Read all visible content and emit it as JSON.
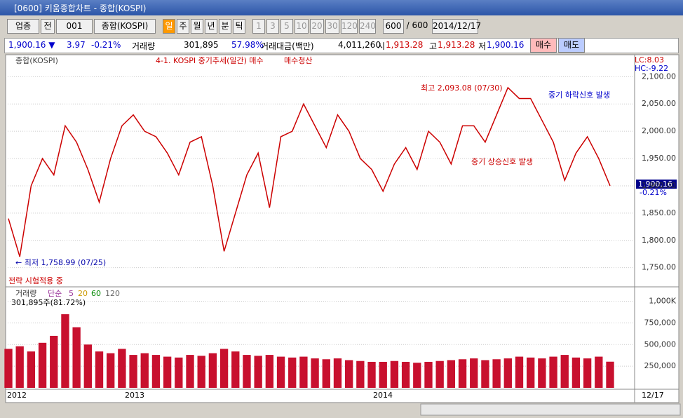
{
  "window": {
    "title": "[0600] 키움종합차트 - 종합(KOSPI)"
  },
  "toolbar": {
    "items": [
      "업종",
      "전",
      "001",
      "종합(KOSPI)",
      "일",
      "주",
      "월",
      "년",
      "분",
      "틱",
      "1",
      "3",
      "5",
      "10",
      "20",
      "30",
      "120",
      "240",
      "600",
      "/ 600",
      "2014/12/17"
    ]
  },
  "info": {
    "price": "1,900.16 ▼",
    "change": "3.97",
    "rate": "-0.21%",
    "volume_label": "거래량",
    "volume": "301,895",
    "volume_rate": "57.98%",
    "amount_label": "거래대금(백만)",
    "amount": "4,011,260",
    "open_label": "시",
    "open": "1,913.28",
    "high_label": "고",
    "high": "1,913.28",
    "low_label": "저",
    "low": "1,900.16",
    "buy": "매수",
    "sell": "매도"
  },
  "legend": {
    "symbol": "종합(KOSPI)",
    "strategy": "4-1. KOSPI 중기추세(일간) 매수",
    "strategy_exit": "매수청산",
    "lc": "LC:8.03",
    "hc": "HC:-9.22"
  },
  "annotations": {
    "high": "최고 2,093.08 (07/30)",
    "down_signal": "중기 하락신호 발생",
    "up_signal": "중기 상승신호 발생",
    "low": "← 최저 1,758.99 (07/25)",
    "testing": "전략 시험적용 중",
    "last": "1,900.16",
    "last_rate": "-0.21%"
  },
  "volume_legend": {
    "name": "거래량",
    "ma": "단순",
    "p5": "5",
    "p20": "20",
    "p60": "60",
    "p120": "120",
    "current": "301,895주(81.72%)"
  },
  "x_labels": [
    "2012",
    "2013",
    "2014",
    "12/17"
  ],
  "chart_data": [
    {
      "type": "line",
      "color": "#cc0000",
      "values": [
        1840,
        1770,
        1900,
        1950,
        1920,
        2010,
        1980,
        1930,
        1870,
        1950,
        2010,
        2030,
        2000,
        1990,
        1960,
        1920,
        1980,
        1990,
        1900,
        1780,
        1850,
        1920,
        1960,
        1860,
        1990,
        2000,
        2050,
        2010,
        1970,
        2030,
        2000,
        1950,
        1930,
        1890,
        1940,
        1970,
        1930,
        2000,
        1980,
        1940,
        2010,
        2010,
        1980,
        2030,
        2080,
        2060,
        2060,
        2020,
        1980,
        1910,
        1960,
        1990,
        1950,
        1900
      ],
      "ylim": [
        1720,
        2130
      ],
      "yticks": [
        {
          "value": 1750,
          "label": "1,750.00"
        },
        {
          "value": 1800,
          "label": "1,800.00"
        },
        {
          "value": 1850,
          "label": "1,850.00"
        },
        {
          "value": 1900,
          "label": "1,900.00"
        },
        {
          "value": 1950,
          "label": "1,950.00"
        },
        {
          "value": 2000,
          "label": "2,000.00"
        },
        {
          "value": 2050,
          "label": "2,050.00"
        },
        {
          "value": 2100,
          "label": "2,100.00"
        }
      ]
    },
    {
      "type": "bar",
      "color": "#c8102e",
      "values": [
        450000,
        480000,
        420000,
        520000,
        600000,
        850000,
        700000,
        500000,
        420000,
        400000,
        450000,
        380000,
        400000,
        380000,
        360000,
        350000,
        380000,
        370000,
        400000,
        450000,
        420000,
        380000,
        370000,
        380000,
        360000,
        350000,
        360000,
        340000,
        330000,
        340000,
        320000,
        310000,
        300000,
        300000,
        310000,
        300000,
        290000,
        300000,
        310000,
        320000,
        330000,
        340000,
        320000,
        330000,
        340000,
        360000,
        350000,
        340000,
        360000,
        380000,
        350000,
        340000,
        360000,
        301895
      ],
      "ylim": [
        0,
        1150000
      ],
      "yticks": [
        {
          "value": 250000,
          "label": "250,000"
        },
        {
          "value": 500000,
          "label": "500,000"
        },
        {
          "value": 750000,
          "label": "750,000"
        },
        {
          "value": 1000000,
          "label": "1,000K"
        }
      ]
    }
  ]
}
